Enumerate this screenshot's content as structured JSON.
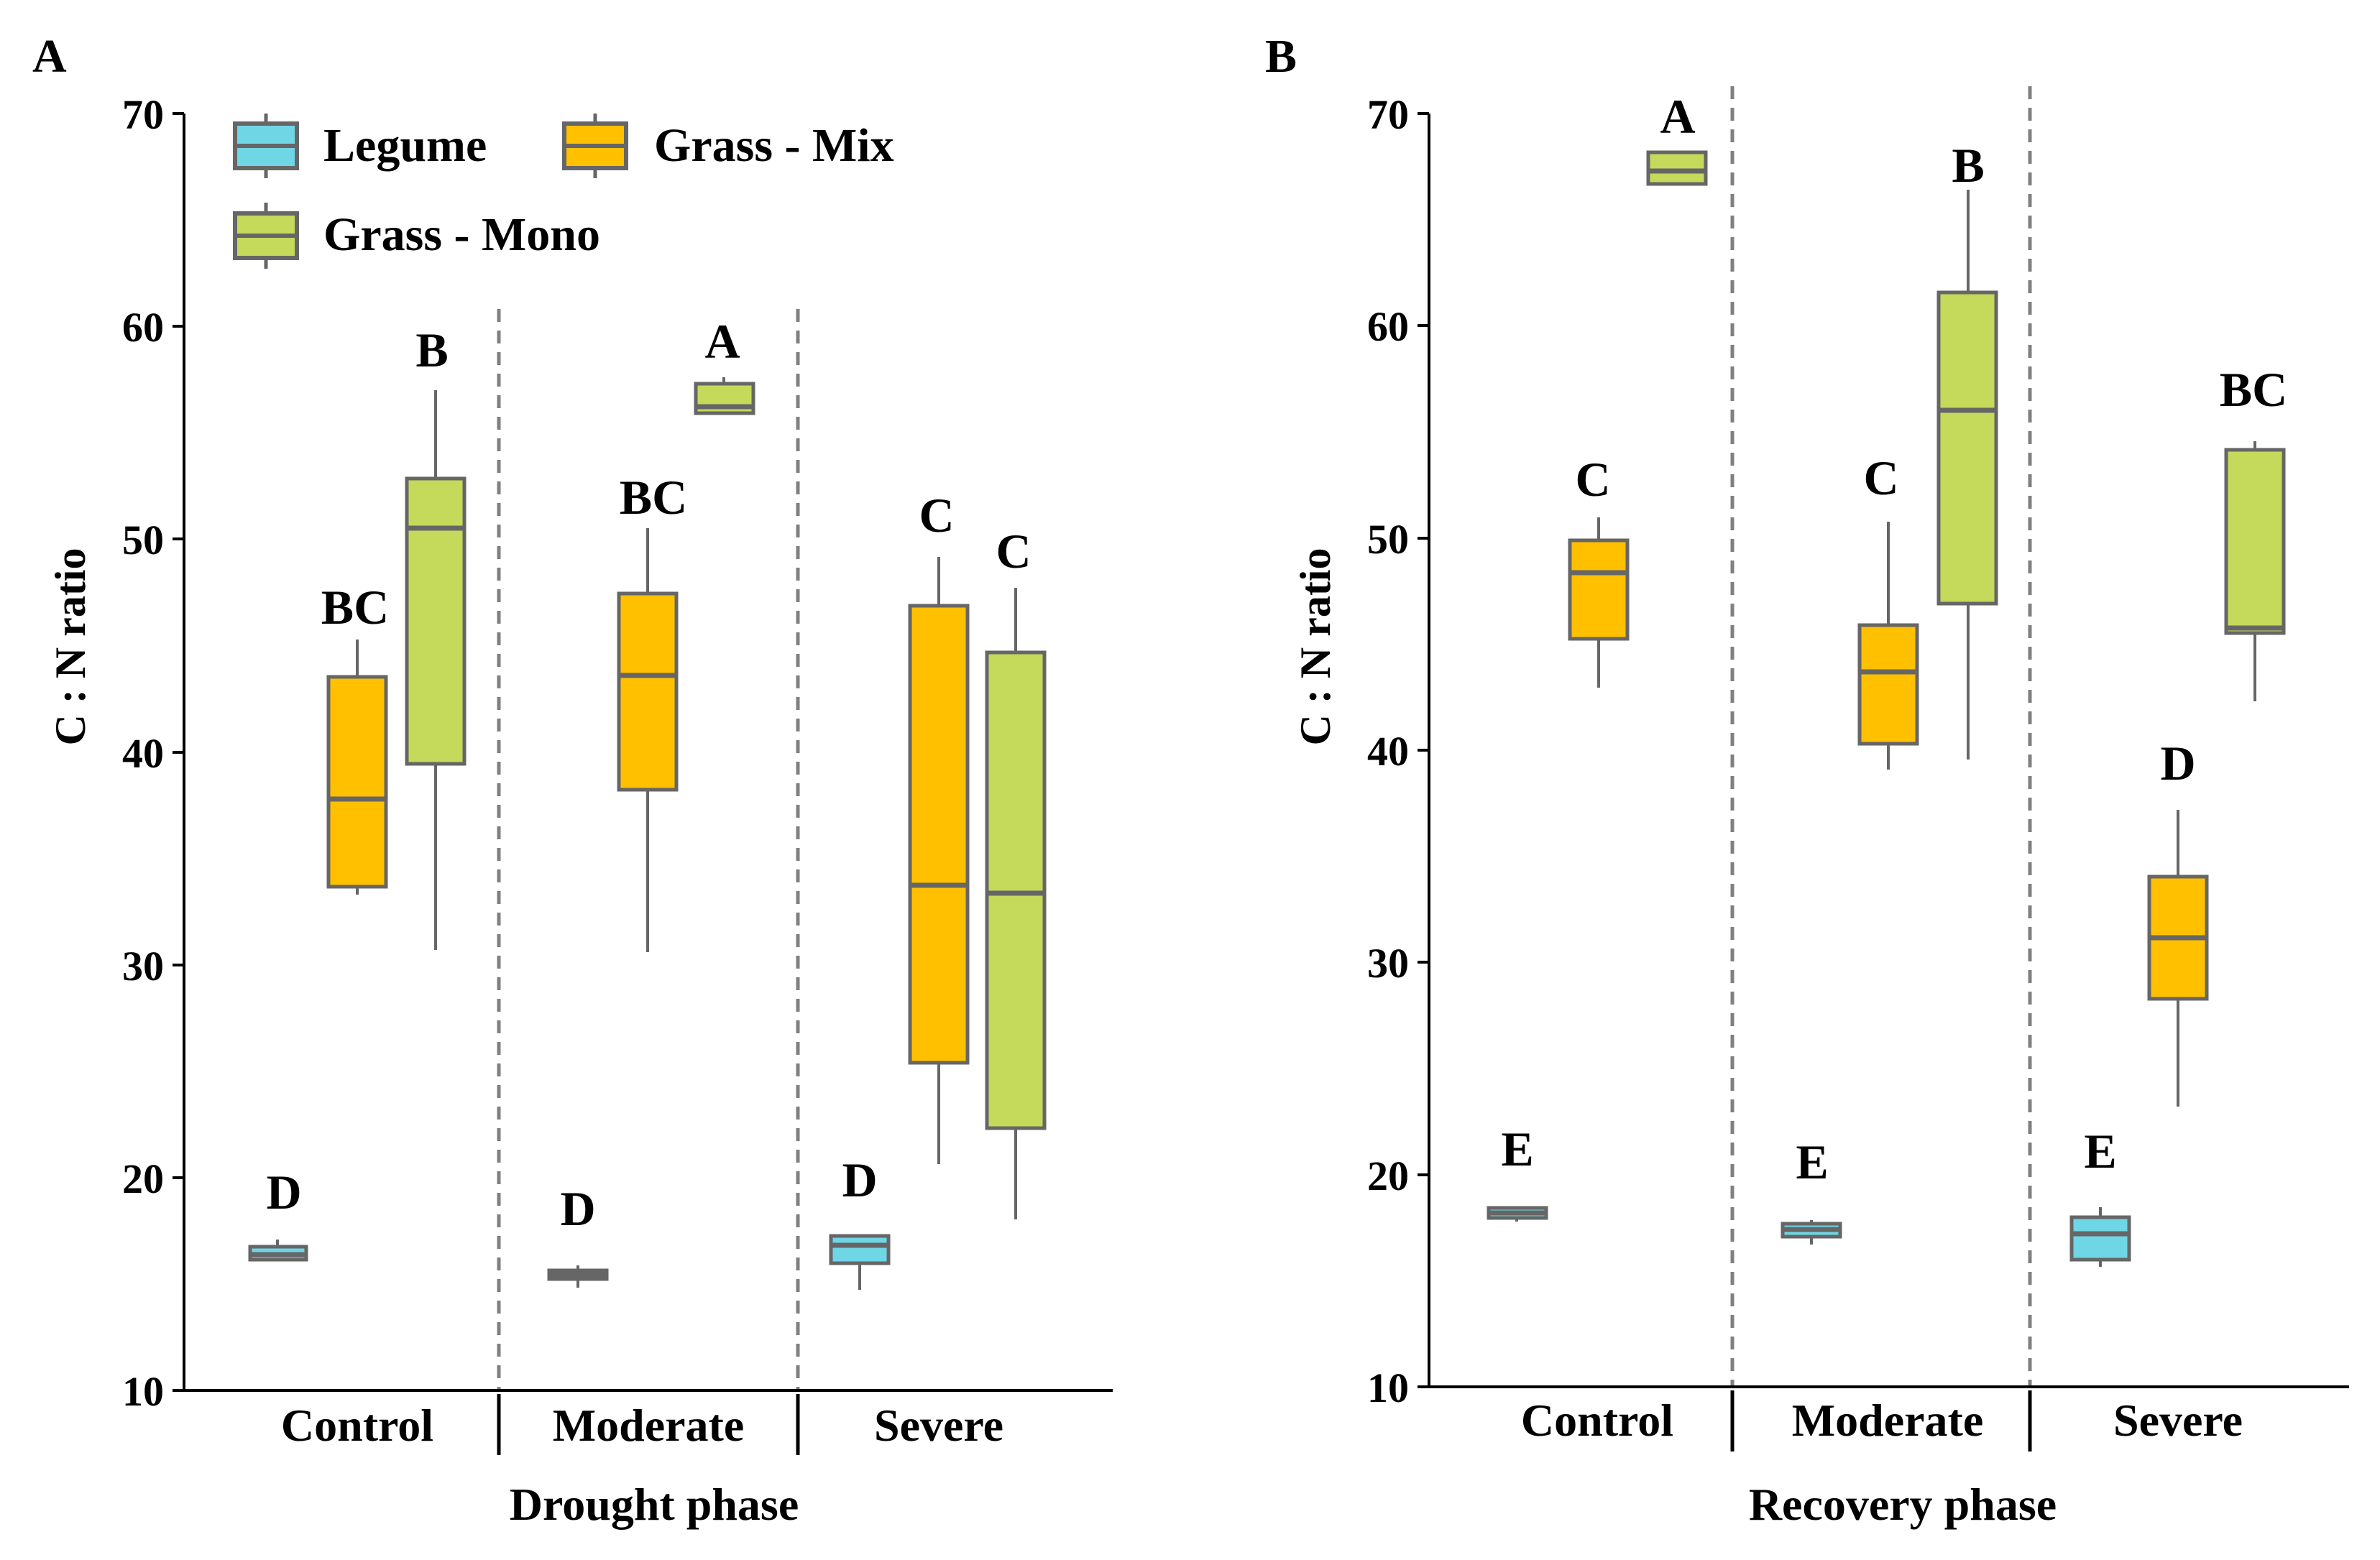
{
  "colors": {
    "legume": "#6fd6e6",
    "grass_mix": "#ffc000",
    "grass_mono": "#c5d95a",
    "box_stroke": "#666666",
    "axis": "#000000",
    "divider": "#808080"
  },
  "legend": {
    "items": [
      {
        "key": "legume",
        "label": "Legume"
      },
      {
        "key": "grass_mix",
        "label": "Grass - Mix"
      },
      {
        "key": "grass_mono",
        "label": "Grass - Mono"
      }
    ]
  },
  "chart_data": [
    {
      "type": "box",
      "panel_label": "A",
      "xlabel": "Drought phase",
      "ylabel": "C : N ratio",
      "ylim": [
        10,
        70
      ],
      "yticks": [
        10,
        20,
        30,
        40,
        50,
        60,
        70
      ],
      "categories": [
        "Control",
        "Moderate",
        "Severe"
      ],
      "series": [
        {
          "name": "Legume",
          "key": "legume",
          "boxes": [
            {
              "category": "Control",
              "min": 16.3,
              "q1": 16.3,
              "median": 16.5,
              "q3": 17.0,
              "max": 17.3,
              "letter": "D"
            },
            {
              "category": "Moderate",
              "min": 15.0,
              "q1": 15.3,
              "median": 15.6,
              "q3": 15.9,
              "max": 16.2,
              "letter": "D"
            },
            {
              "category": "Severe",
              "min": 14.8,
              "q1": 16.2,
              "median": 17.0,
              "q3": 17.4,
              "max": 17.4,
              "letter": "D"
            }
          ]
        },
        {
          "name": "Grass - Mix",
          "key": "grass_mix",
          "boxes": [
            {
              "category": "Control",
              "min": 33.3,
              "q1": 33.8,
              "median": 37.9,
              "q3": 43.6,
              "max": 45.4,
              "letter": "BC"
            },
            {
              "category": "Moderate",
              "min": 30.6,
              "q1": 38.3,
              "median": 43.7,
              "q3": 47.5,
              "max": 50.6,
              "letter": "BC"
            },
            {
              "category": "Severe",
              "min": 20.8,
              "q1": 25.5,
              "median": 33.9,
              "q3": 47.0,
              "max": 49.3,
              "letter": "C"
            }
          ]
        },
        {
          "name": "Grass - Mono",
          "key": "grass_mono",
          "boxes": [
            {
              "category": "Control",
              "min": 30.9,
              "q1": 39.5,
              "median": 50.6,
              "q3": 53.0,
              "max": 57.1,
              "letter": "B"
            },
            {
              "category": "Moderate",
              "min": 56.0,
              "q1": 56.0,
              "median": 56.3,
              "q3": 57.2,
              "max": 57.5,
              "letter": "A"
            },
            {
              "category": "Severe",
              "min": 18.1,
              "q1": 22.5,
              "median": 33.4,
              "q3": 44.8,
              "max": 47.7,
              "letter": "C"
            }
          ]
        }
      ]
    },
    {
      "type": "box",
      "panel_label": "B",
      "xlabel": "Recovery phase",
      "ylabel": "C : N ratio",
      "ylim": [
        10,
        70
      ],
      "yticks": [
        10,
        20,
        30,
        40,
        50,
        60,
        70
      ],
      "categories": [
        "Control",
        "Moderate",
        "Severe"
      ],
      "series": [
        {
          "name": "Legume",
          "key": "legume",
          "boxes": [
            {
              "category": "Control",
              "min": 18.0,
              "q1": 18.1,
              "median": 18.3,
              "q3": 18.4,
              "max": 18.5,
              "letter": "E"
            },
            {
              "category": "Moderate",
              "min": 16.9,
              "q1": 17.3,
              "median": 17.6,
              "q3": 17.8,
              "max": 17.9,
              "letter": "E"
            },
            {
              "category": "Severe",
              "min": 15.8,
              "q1": 16.1,
              "median": 17.4,
              "q3": 18.0,
              "max": 18.5,
              "letter": "E"
            }
          ]
        },
        {
          "name": "Grass - Mix",
          "key": "grass_mix",
          "boxes": [
            {
              "category": "Control",
              "min": 43.1,
              "q1": 45.3,
              "median": 48.4,
              "q3": 50.0,
              "max": 51.0,
              "letter": "C"
            },
            {
              "category": "Moderate",
              "min": 39.2,
              "q1": 40.4,
              "median": 43.7,
              "q3": 46.0,
              "max": 50.8,
              "letter": "C"
            },
            {
              "category": "Severe",
              "min": 23.3,
              "q1": 28.4,
              "median": 31.2,
              "q3": 34.2,
              "max": 37.2,
              "letter": "D"
            }
          ]
        },
        {
          "name": "Grass - Mono",
          "key": "grass_mono",
          "boxes": [
            {
              "category": "Control",
              "min": 66.6,
              "q1": 66.6,
              "median": 67.2,
              "q3": 68.1,
              "max": 68.1,
              "letter": "A"
            },
            {
              "category": "Moderate",
              "min": 39.6,
              "q1": 47.0,
              "median": 56.0,
              "q3": 61.5,
              "max": 66.3,
              "letter": "B"
            },
            {
              "category": "Severe",
              "min": 42.3,
              "q1": 45.6,
              "median": 45.8,
              "q3": 54.2,
              "max": 54.5,
              "letter": "BC"
            }
          ]
        }
      ]
    }
  ]
}
